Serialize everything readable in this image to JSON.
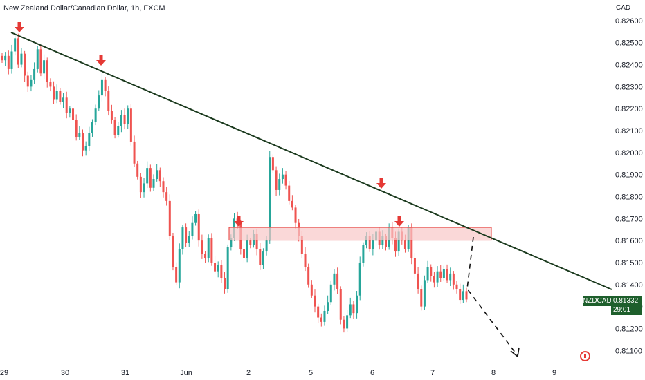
{
  "header": {
    "title": "New Zealand Dollar/Canadian Dollar, 1h, FXCM"
  },
  "axis": {
    "currency": "CAD"
  },
  "price_tag": {
    "symbol": "NZDCAD",
    "price": "0.81332",
    "countdown": "29:01"
  },
  "colors": {
    "up": "#26a69a",
    "down": "#ef5350",
    "trendline": "#1b3a1e",
    "zone_fill": "#f8c8c8",
    "zone_stroke": "#e53935",
    "arrow": "#e53935",
    "tag_bg": "#1e5f2c"
  },
  "chart_data": {
    "type": "candlestick",
    "title": "New Zealand Dollar/Canadian Dollar, 1h, FXCM",
    "y_ticks": [
      "0.82600",
      "0.82500",
      "0.82400",
      "0.82300",
      "0.82200",
      "0.82100",
      "0.82000",
      "0.81900",
      "0.81800",
      "0.81700",
      "0.81600",
      "0.81500",
      "0.81400",
      "0.81300",
      "0.81200",
      "0.81100"
    ],
    "ylim": [
      0.8106,
      0.8265
    ],
    "x_ticks": [
      "29",
      "30",
      "31",
      "Jun",
      "2",
      "5",
      "6",
      "7",
      "8",
      "9"
    ],
    "last_price": 0.81332,
    "series": [
      {
        "name": "NZDCAD",
        "closes": [
          0.8242,
          0.8244,
          0.8238,
          0.8246,
          0.8252,
          0.824,
          0.8245,
          0.8235,
          0.823,
          0.8233,
          0.8238,
          0.8247,
          0.8236,
          0.8242,
          0.8232,
          0.823,
          0.8224,
          0.8228,
          0.8223,
          0.8225,
          0.8218,
          0.822,
          0.8215,
          0.8207,
          0.8209,
          0.8201,
          0.8203,
          0.8209,
          0.8214,
          0.822,
          0.8226,
          0.8233,
          0.8228,
          0.8219,
          0.8215,
          0.8208,
          0.8212,
          0.8217,
          0.8213,
          0.822,
          0.8205,
          0.8195,
          0.8189,
          0.8182,
          0.8186,
          0.8193,
          0.8184,
          0.8188,
          0.8192,
          0.8187,
          0.8182,
          0.8178,
          0.8162,
          0.8148,
          0.8141,
          0.8156,
          0.8166,
          0.8159,
          0.8162,
          0.8168,
          0.8172,
          0.816,
          0.8154,
          0.8152,
          0.8161,
          0.815,
          0.8146,
          0.8149,
          0.8143,
          0.8138,
          0.8157,
          0.8161,
          0.817,
          0.8168,
          0.8156,
          0.8152,
          0.816,
          0.8158,
          0.8163,
          0.8156,
          0.8149,
          0.8155,
          0.816,
          0.8198,
          0.8192,
          0.8183,
          0.8188,
          0.819,
          0.8185,
          0.8178,
          0.8175,
          0.8168,
          0.8162,
          0.8154,
          0.8148,
          0.814,
          0.8135,
          0.813,
          0.8125,
          0.8123,
          0.8128,
          0.8132,
          0.814,
          0.8145,
          0.8138,
          0.8124,
          0.812,
          0.8126,
          0.8131,
          0.8127,
          0.8135,
          0.815,
          0.8158,
          0.8162,
          0.8156,
          0.816,
          0.8164,
          0.8158,
          0.8162,
          0.8157,
          0.8166,
          0.8161,
          0.8155,
          0.8164,
          0.816,
          0.8156,
          0.8166,
          0.8152,
          0.8145,
          0.8138,
          0.813,
          0.8142,
          0.8148,
          0.8144,
          0.8141,
          0.8146,
          0.8143,
          0.8147,
          0.8142,
          0.8145,
          0.814,
          0.8138,
          0.8133,
          0.8137,
          0.81332
        ]
      }
    ],
    "annotations": {
      "trendline": {
        "from_x": 0,
        "from_y": 0.8255,
        "to_x": 1.0,
        "to_y": 0.8139
      },
      "resistance_zone": {
        "y_low": 0.8162,
        "y_high": 0.8165
      },
      "projection": [
        [
          0.8163
        ],
        [
          0.811
        ]
      ],
      "arrows": [
        0.8254,
        0.8238,
        0.8184,
        0.8167,
        0.8167
      ]
    }
  }
}
